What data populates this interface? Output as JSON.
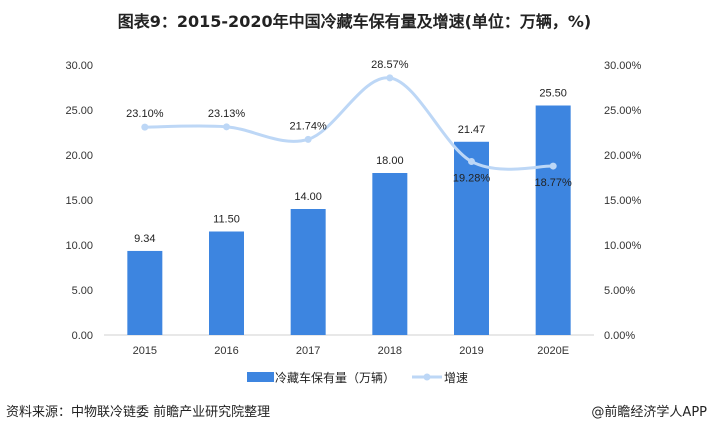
{
  "chart_data": {
    "type": "bar",
    "title": "图表9：2015-2020年中国冷藏车保有量及增速(单位：万辆，%)",
    "categories": [
      "2015",
      "2016",
      "2017",
      "2018",
      "2019",
      "2020E"
    ],
    "series": [
      {
        "name": "冷藏车保有量（万辆）",
        "type": "bar",
        "axis": "left",
        "values": [
          9.34,
          11.5,
          14.0,
          18.0,
          21.47,
          25.5
        ],
        "labels": [
          "9.34",
          "11.50",
          "14.00",
          "18.00",
          "21.47",
          "25.50"
        ],
        "color": "#3d85e0"
      },
      {
        "name": "增速",
        "type": "line",
        "axis": "right",
        "values": [
          23.1,
          23.13,
          21.74,
          28.57,
          19.28,
          18.77
        ],
        "labels": [
          "23.10%",
          "23.13%",
          "21.74%",
          "28.57%",
          "19.28%",
          "18.77%"
        ],
        "color": "#bdd7f6"
      }
    ],
    "left_axis": {
      "range": [
        0,
        30
      ],
      "ticks": [
        "0.00",
        "5.00",
        "10.00",
        "15.00",
        "20.00",
        "25.00",
        "30.00"
      ]
    },
    "right_axis": {
      "range": [
        0,
        30
      ],
      "ticks": [
        "0.00%",
        "5.00%",
        "10.00%",
        "15.00%",
        "20.00%",
        "25.00%",
        "30.00%"
      ]
    },
    "legend_position": "bottom",
    "grid": false
  },
  "footer": {
    "source": "资料来源：中物联冷链委 前瞻产业研究院整理",
    "credit": "@前瞻经济学人APP"
  }
}
